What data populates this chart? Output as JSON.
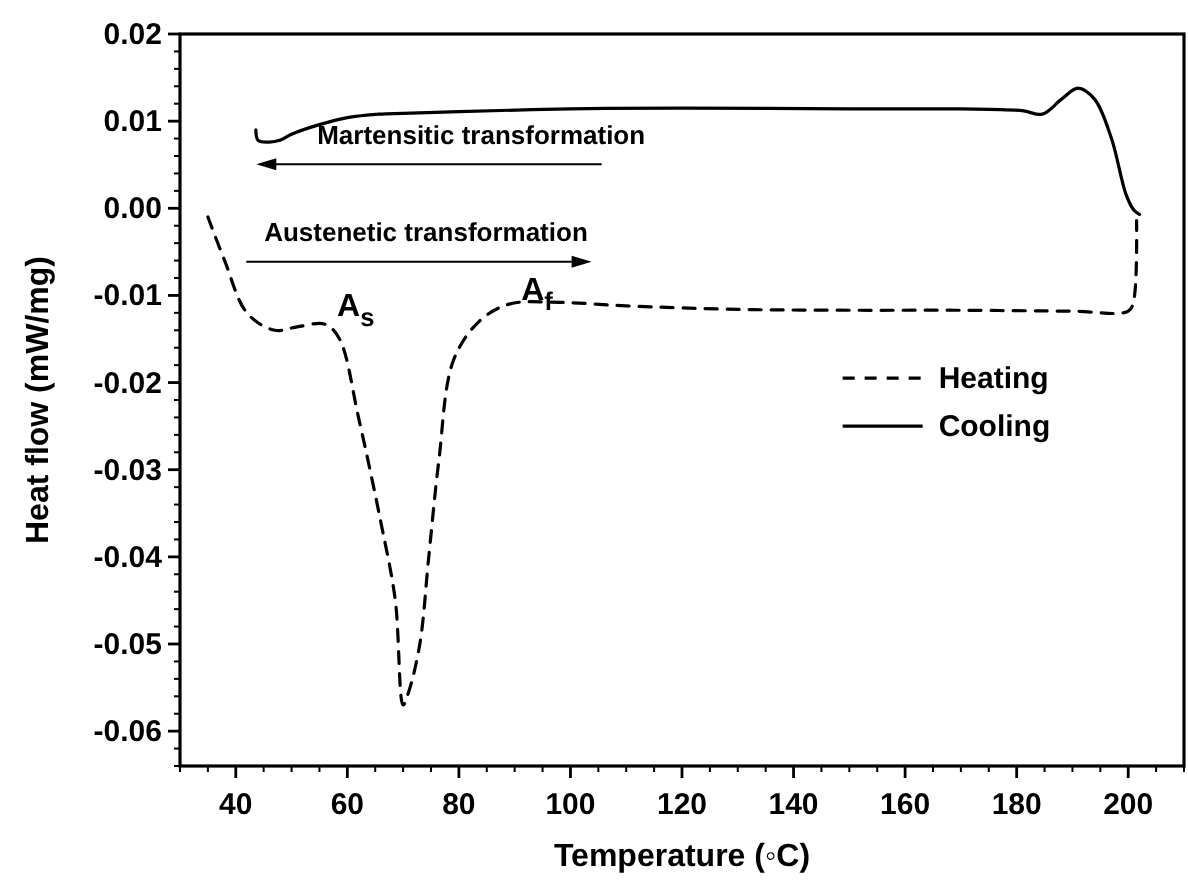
{
  "chart_data": {
    "type": "line",
    "xlabel": "Temperature (◦C)",
    "ylabel": "Heat flow (mW/mg)",
    "xlim": [
      30,
      210
    ],
    "xticks": [
      40,
      60,
      80,
      100,
      120,
      140,
      160,
      180,
      200
    ],
    "ylim": [
      -0.064,
      0.02
    ],
    "yticks": [
      {
        "value": -0.06,
        "label": "-0.06"
      },
      {
        "value": -0.05,
        "label": "-0.05"
      },
      {
        "value": -0.04,
        "label": "-0.04"
      },
      {
        "value": -0.03,
        "label": "-0.03"
      },
      {
        "value": -0.02,
        "label": "-0.02"
      },
      {
        "value": -0.01,
        "label": "-0.01"
      },
      {
        "value": 0,
        "label": "0.00"
      },
      {
        "value": 0.01,
        "label": "0.01"
      },
      {
        "value": 0.02,
        "label": "0.02"
      }
    ],
    "grid": false,
    "legend": "right",
    "marker": "none",
    "series": [
      {
        "name": "Heating",
        "color": "#000000",
        "line_style": "dashed",
        "x": [
          35,
          38,
          42,
          47,
          51,
          56,
          58.6,
          62,
          66,
          68.6,
          70,
          71,
          73,
          74.6,
          76.4,
          79,
          83.6,
          89,
          98,
          110,
          130,
          150,
          170,
          190,
          200,
          201,
          201.5
        ],
        "values": [
          -0.001,
          -0.006,
          -0.012,
          -0.014,
          -0.0136,
          -0.0133,
          -0.015,
          -0.024,
          -0.036,
          -0.045,
          -0.057,
          -0.0555,
          -0.05,
          -0.04,
          -0.029,
          -0.0175,
          -0.013,
          -0.011,
          -0.0108,
          -0.0112,
          -0.0116,
          -0.0117,
          -0.0117,
          -0.0118,
          -0.0118,
          -0.0105,
          -0.0014
        ]
      },
      {
        "name": "Cooling",
        "color": "#000000",
        "line_style": "solid",
        "x": [
          202,
          201,
          199.6,
          197,
          194,
          191,
          188,
          184.6,
          181,
          170,
          150,
          120,
          100,
          80,
          70,
          65.7,
          60,
          55,
          50,
          47.9,
          46,
          44,
          43.6
        ],
        "values": [
          -0.0007,
          -0.0002,
          0.0016,
          0.008,
          0.0125,
          0.0138,
          0.0125,
          0.0108,
          0.0112,
          0.0114,
          0.0114,
          0.0115,
          0.0114,
          0.0111,
          0.0109,
          0.0108,
          0.0104,
          0.0096,
          0.0085,
          0.0078,
          0.0076,
          0.0078,
          0.009
        ]
      }
    ],
    "annotations": [
      "Martensitic transformation",
      "Austenetic transformation",
      "A$_{s}$",
      {
        "text": "A$_{f}$",
        "x": 94,
        "y": -0.0105
      }
    ]
  }
}
